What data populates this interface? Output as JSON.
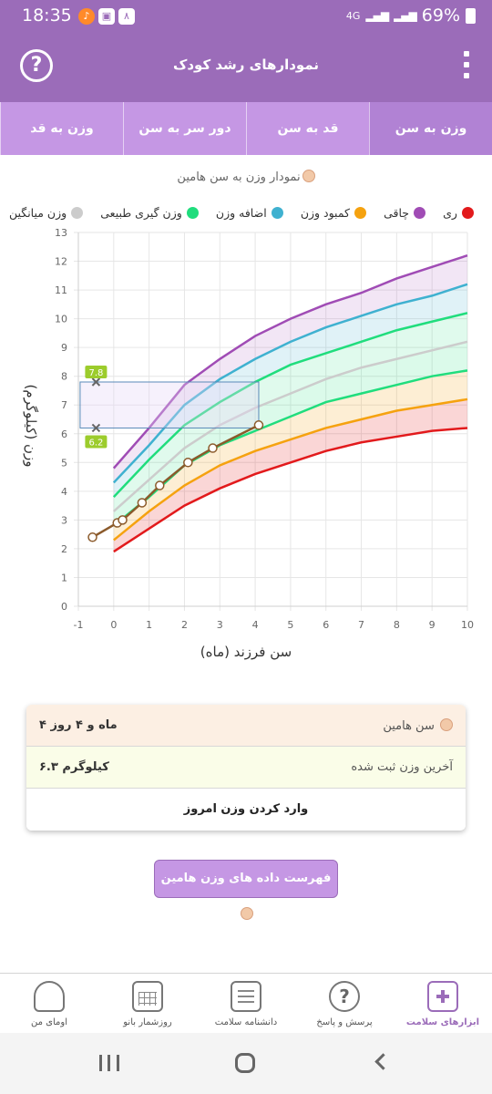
{
  "status_bar": {
    "time": "18:35",
    "network": "4G",
    "battery": "69%"
  },
  "app_bar": {
    "title": "نمودارهای رشد کودک",
    "help_icon": "question-circle-icon",
    "menu_icon": "kebab-menu-icon"
  },
  "tabs": [
    {
      "label": "وزن به سن",
      "active": true
    },
    {
      "label": "قد به سن",
      "active": false
    },
    {
      "label": "دور سر به سن",
      "active": false
    },
    {
      "label": "وزن به قد",
      "active": false
    }
  ],
  "chart_data": {
    "type": "line",
    "title": "نمودار وزن به سن هامین",
    "xlabel": "سن فرزند (ماه)",
    "ylabel": "وزن (کیلوگرم)",
    "xlim": [
      -1,
      10
    ],
    "ylim": [
      0,
      13
    ],
    "x_ticks": [
      "-1",
      "0",
      "1",
      "2",
      "3",
      "4",
      "5",
      "6",
      "7",
      "8",
      "9",
      "10"
    ],
    "y_ticks": [
      "0",
      "1",
      "2",
      "3",
      "4",
      "5",
      "6",
      "7",
      "8",
      "9",
      "10",
      "11",
      "12",
      "13"
    ],
    "grid": true,
    "legend_position": "top",
    "legend": [
      {
        "name": "ری",
        "color": "#e21a1c"
      },
      {
        "name": "چاقی",
        "color": "#a04cb5"
      },
      {
        "name": "کمبود وزن",
        "color": "#f5a20f"
      },
      {
        "name": "اضافه وزن",
        "color": "#3fb1d0"
      },
      {
        "name": "وزن گیری طبیعی",
        "color": "#20dd7d"
      },
      {
        "name": "وزن میانگین",
        "color": "#cccccc"
      }
    ],
    "x": [
      0,
      1,
      2,
      3,
      4,
      5,
      6,
      7,
      8,
      9,
      10
    ],
    "reference_curves": [
      {
        "color": "#e21a1c",
        "values": [
          1.9,
          2.7,
          3.5,
          4.1,
          4.6,
          5.0,
          5.4,
          5.7,
          5.9,
          6.1,
          6.2
        ]
      },
      {
        "color": "#f5a20f",
        "values": [
          2.3,
          3.3,
          4.2,
          4.9,
          5.4,
          5.8,
          6.2,
          6.5,
          6.8,
          7.0,
          7.2
        ]
      },
      {
        "color": "#20dd7d",
        "values": [
          2.8,
          3.8,
          4.9,
          5.6,
          6.1,
          6.6,
          7.1,
          7.4,
          7.7,
          8.0,
          8.2
        ]
      },
      {
        "color": "#cccccc",
        "values": [
          3.3,
          4.4,
          5.5,
          6.3,
          6.9,
          7.4,
          7.9,
          8.3,
          8.6,
          8.9,
          9.2
        ]
      },
      {
        "color": "#20dd7d",
        "values": [
          3.8,
          5.1,
          6.3,
          7.1,
          7.8,
          8.4,
          8.8,
          9.2,
          9.6,
          9.9,
          10.2
        ]
      },
      {
        "color": "#3fb1d0",
        "values": [
          4.3,
          5.6,
          7.0,
          7.9,
          8.6,
          9.2,
          9.7,
          10.1,
          10.5,
          10.8,
          11.2
        ]
      },
      {
        "color": "#a04cb5",
        "values": [
          4.8,
          6.2,
          7.7,
          8.6,
          9.4,
          10.0,
          10.5,
          10.9,
          11.4,
          11.8,
          12.2
        ]
      }
    ],
    "child_series": {
      "color": "#8b5a2b",
      "points": [
        {
          "x": -0.6,
          "y": 2.4
        },
        {
          "x": 0.1,
          "y": 2.9
        },
        {
          "x": 0.25,
          "y": 3.0
        },
        {
          "x": 0.8,
          "y": 3.6
        },
        {
          "x": 1.3,
          "y": 4.2
        },
        {
          "x": 2.1,
          "y": 5.0
        },
        {
          "x": 2.8,
          "y": 5.5
        },
        {
          "x": 4.1,
          "y": 6.3
        }
      ]
    },
    "healthy_range": {
      "low": 6.2,
      "high": 7.8,
      "at_x": 4.1,
      "low_label": "6.2",
      "high_label": "7.8"
    }
  },
  "info_card": {
    "age_label": "سن هامین",
    "age_value": "۴ ماه و ۴ روز",
    "weight_label": "آخرین وزن ثبت شده",
    "weight_value": "۶.۳ کیلوگرم",
    "enter_today_label": "وارد کردن وزن امروز"
  },
  "list_button": {
    "label": "فهرست داده های وزن هامین"
  },
  "bottom_nav": [
    {
      "label": "ابزارهای سلامت",
      "icon": "health-kit-icon",
      "active": true
    },
    {
      "label": "پرسش و پاسخ",
      "icon": "question-icon",
      "active": false
    },
    {
      "label": "دانشنامه سلامت",
      "icon": "newspaper-icon",
      "active": false
    },
    {
      "label": "روزشمار بانو",
      "icon": "calendar-icon",
      "active": false
    },
    {
      "label": "اومای من",
      "icon": "profile-icon",
      "active": false
    }
  ]
}
